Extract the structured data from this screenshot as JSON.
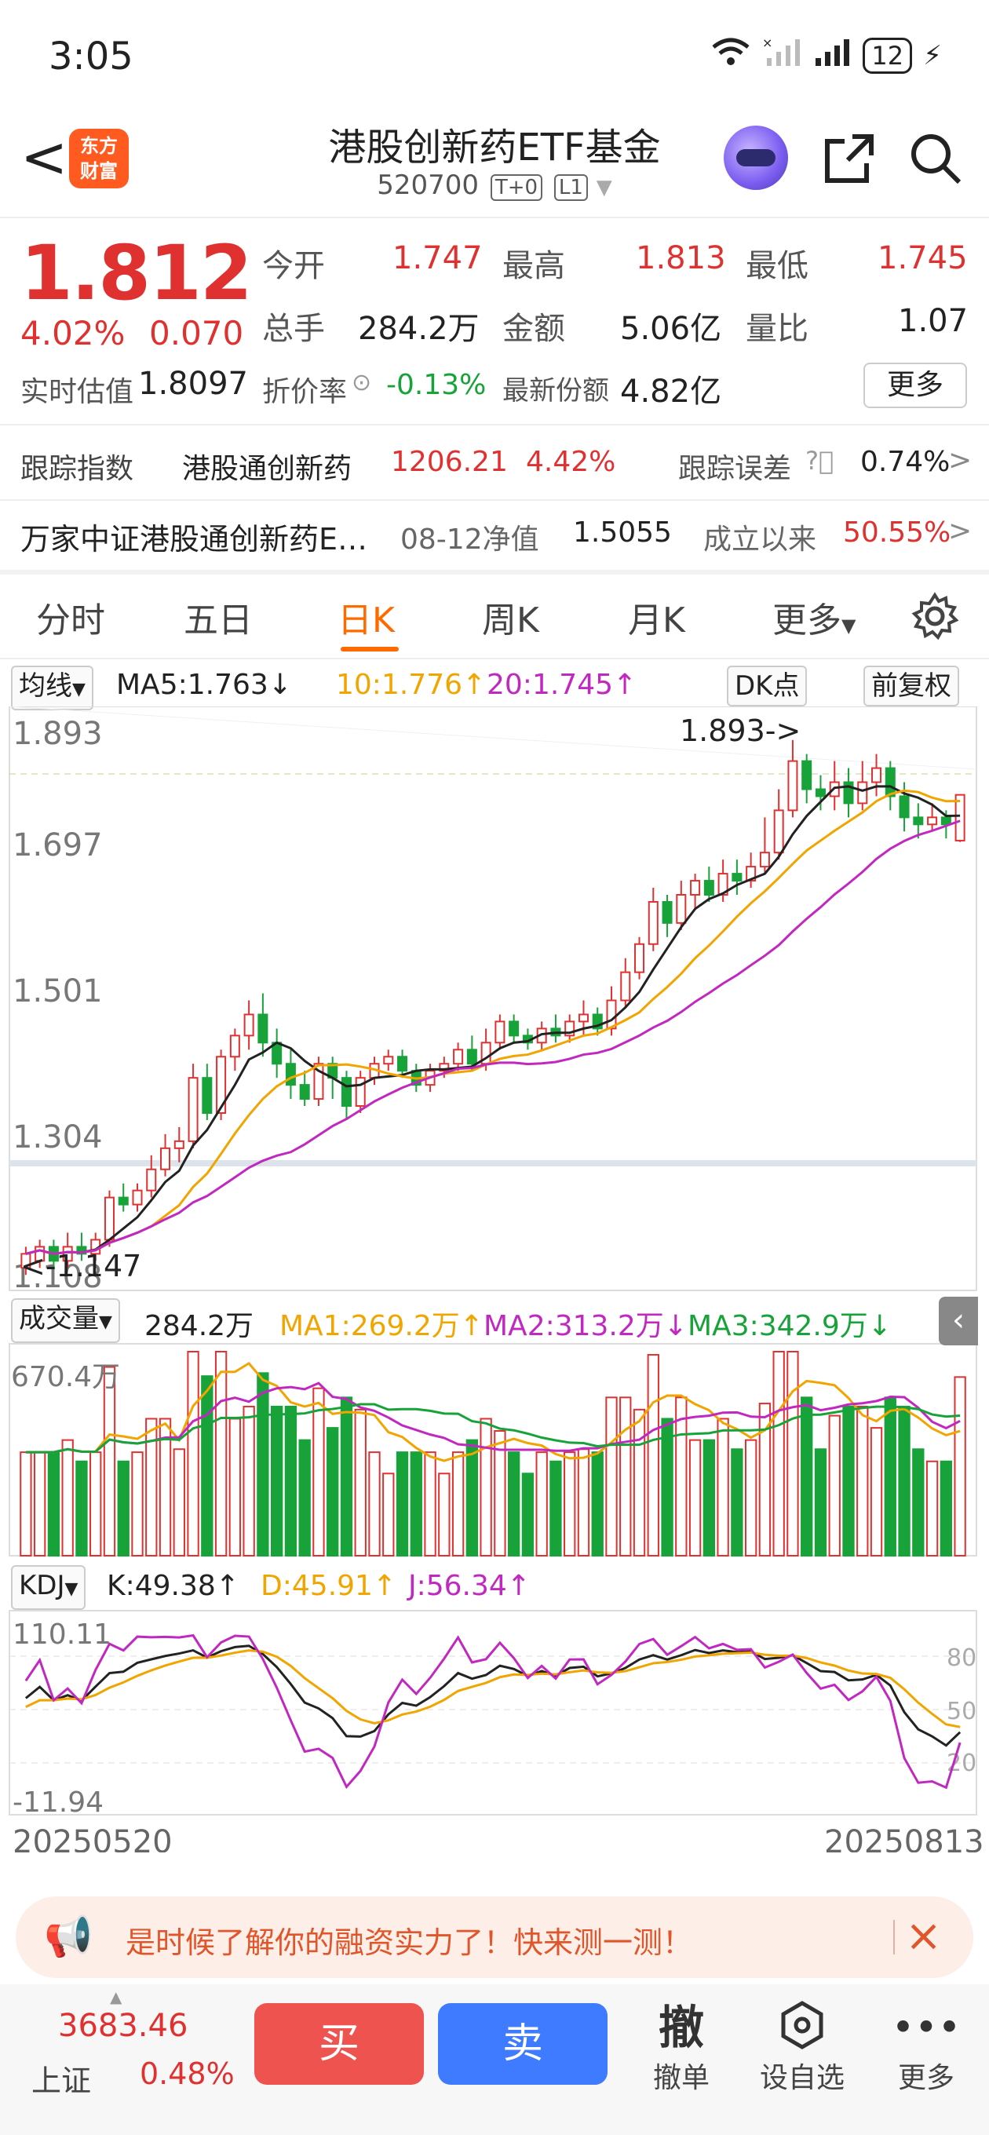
{
  "status": {
    "time": "3:05",
    "battery": "12"
  },
  "nav": {
    "back": "<",
    "logo_line1": "东方",
    "logo_line2": "财富",
    "title": "港股创新药ETF基金",
    "code": "520700",
    "tag1": "T+0",
    "tag2": "L1"
  },
  "quote": {
    "price": "1.812",
    "pct": "4.02%",
    "chg": "0.070",
    "open_label": "今开",
    "open": "1.747",
    "high_label": "最高",
    "high": "1.813",
    "low_label": "最低",
    "low": "1.745",
    "vol_label": "总手",
    "vol": "284.2万",
    "amt_label": "金额",
    "amt": "5.06亿",
    "ratio_label": "量比",
    "ratio": "1.07",
    "est_label": "实时估值",
    "est": "1.8097",
    "disc_label": "折价率",
    "disc": "-0.13%",
    "share_label": "最新份额",
    "share": "4.82亿",
    "more": "更多"
  },
  "tracking": {
    "label": "跟踪指数",
    "index": "港股通创新药",
    "value": "1206.21",
    "pct": "4.42%",
    "err_label": "跟踪误差",
    "err": "0.74%"
  },
  "fund": {
    "name": "万家中证港股通创新药E…",
    "nav_label": "08-12净值",
    "nav": "1.5055",
    "since_label": "成立以来",
    "since": "50.55%"
  },
  "tabs": [
    "分时",
    "五日",
    "日K",
    "周K",
    "月K",
    "更多"
  ],
  "active_tab": "日K",
  "kline_bar": {
    "ma_select": "均线",
    "ma5": "MA5:1.763↓",
    "ma10": "10:1.776↑",
    "ma20": "20:1.745↑",
    "dk": "DK点",
    "fq": "前复权"
  },
  "price_axis": [
    "1.893",
    "1.697",
    "1.501",
    "1.304",
    "1.108"
  ],
  "annotations": {
    "high_mark": "1.893->",
    "low_mark": "<-1.147"
  },
  "vol_bar": {
    "select": "成交量",
    "val": "284.2万",
    "ma1": "MA1:269.2万↑",
    "ma2": "MA2:313.2万↓",
    "ma3": "MA3:342.9万↓",
    "top": "670.4万"
  },
  "kdj_bar": {
    "select": "KDJ",
    "k": "K:49.38↑",
    "d": "D:45.91↑",
    "j": "J:56.34↑",
    "top": "110.11",
    "bottom": "-11.94",
    "l80": "80",
    "l50": "50",
    "l20": "20"
  },
  "dates": {
    "start": "20250520",
    "end": "20250813"
  },
  "banner": {
    "text": "是时候了解你的融资实力了！快来测一测！"
  },
  "bottom": {
    "idx_val": "3683.46",
    "idx_name": "上证",
    "idx_pct": "0.48%",
    "buy": "买",
    "sell": "卖",
    "cancel_icon": "撤",
    "cancel": "撤单",
    "watch": "设自选",
    "more": "更多"
  },
  "colors": {
    "up": "#e03131",
    "down": "#18a33a",
    "accent": "#ff6a00"
  },
  "chart_data": {
    "type": "candlestick",
    "title": "",
    "x_start": "20250520",
    "x_end": "20250813",
    "ylim": [
      1.108,
      1.893
    ],
    "candles": [
      [
        1.14,
        1.16,
        1.13,
        1.17
      ],
      [
        1.15,
        1.17,
        1.14,
        1.18
      ],
      [
        1.17,
        1.15,
        1.14,
        1.18
      ],
      [
        1.15,
        1.17,
        1.14,
        1.19
      ],
      [
        1.17,
        1.16,
        1.15,
        1.19
      ],
      [
        1.16,
        1.18,
        1.15,
        1.19
      ],
      [
        1.18,
        1.24,
        1.17,
        1.25
      ],
      [
        1.24,
        1.23,
        1.22,
        1.26
      ],
      [
        1.23,
        1.25,
        1.22,
        1.26
      ],
      [
        1.25,
        1.28,
        1.24,
        1.3
      ],
      [
        1.28,
        1.31,
        1.27,
        1.33
      ],
      [
        1.31,
        1.32,
        1.29,
        1.34
      ],
      [
        1.32,
        1.41,
        1.31,
        1.43
      ],
      [
        1.41,
        1.36,
        1.35,
        1.43
      ],
      [
        1.36,
        1.44,
        1.35,
        1.45
      ],
      [
        1.44,
        1.47,
        1.42,
        1.48
      ],
      [
        1.47,
        1.5,
        1.45,
        1.52
      ],
      [
        1.5,
        1.46,
        1.44,
        1.53
      ],
      [
        1.46,
        1.43,
        1.41,
        1.48
      ],
      [
        1.43,
        1.4,
        1.38,
        1.45
      ],
      [
        1.4,
        1.38,
        1.37,
        1.42
      ],
      [
        1.38,
        1.43,
        1.37,
        1.44
      ],
      [
        1.43,
        1.41,
        1.38,
        1.44
      ],
      [
        1.41,
        1.37,
        1.35,
        1.42
      ],
      [
        1.37,
        1.41,
        1.36,
        1.42
      ],
      [
        1.41,
        1.43,
        1.4,
        1.44
      ],
      [
        1.43,
        1.44,
        1.42,
        1.45
      ],
      [
        1.44,
        1.42,
        1.41,
        1.45
      ],
      [
        1.42,
        1.4,
        1.39,
        1.43
      ],
      [
        1.4,
        1.42,
        1.39,
        1.43
      ],
      [
        1.42,
        1.43,
        1.41,
        1.44
      ],
      [
        1.43,
        1.45,
        1.42,
        1.46
      ],
      [
        1.45,
        1.43,
        1.42,
        1.47
      ],
      [
        1.43,
        1.46,
        1.42,
        1.48
      ],
      [
        1.46,
        1.49,
        1.45,
        1.5
      ],
      [
        1.49,
        1.47,
        1.46,
        1.5
      ],
      [
        1.47,
        1.46,
        1.45,
        1.48
      ],
      [
        1.46,
        1.48,
        1.45,
        1.49
      ],
      [
        1.48,
        1.47,
        1.46,
        1.5
      ],
      [
        1.47,
        1.49,
        1.46,
        1.5
      ],
      [
        1.49,
        1.5,
        1.47,
        1.52
      ],
      [
        1.5,
        1.48,
        1.47,
        1.51
      ],
      [
        1.48,
        1.52,
        1.47,
        1.54
      ],
      [
        1.52,
        1.56,
        1.51,
        1.58
      ],
      [
        1.56,
        1.6,
        1.55,
        1.61
      ],
      [
        1.6,
        1.66,
        1.59,
        1.68
      ],
      [
        1.66,
        1.63,
        1.61,
        1.67
      ],
      [
        1.63,
        1.67,
        1.62,
        1.69
      ],
      [
        1.67,
        1.69,
        1.65,
        1.7
      ],
      [
        1.69,
        1.67,
        1.66,
        1.71
      ],
      [
        1.67,
        1.7,
        1.66,
        1.72
      ],
      [
        1.7,
        1.69,
        1.67,
        1.72
      ],
      [
        1.69,
        1.71,
        1.68,
        1.73
      ],
      [
        1.71,
        1.73,
        1.7,
        1.78
      ],
      [
        1.73,
        1.79,
        1.72,
        1.82
      ],
      [
        1.79,
        1.86,
        1.78,
        1.89
      ],
      [
        1.86,
        1.82,
        1.8,
        1.87
      ],
      [
        1.82,
        1.81,
        1.79,
        1.84
      ],
      [
        1.81,
        1.83,
        1.79,
        1.86
      ],
      [
        1.83,
        1.8,
        1.78,
        1.85
      ],
      [
        1.8,
        1.83,
        1.79,
        1.86
      ],
      [
        1.83,
        1.85,
        1.81,
        1.87
      ],
      [
        1.85,
        1.81,
        1.79,
        1.86
      ],
      [
        1.81,
        1.78,
        1.76,
        1.83
      ],
      [
        1.78,
        1.77,
        1.75,
        1.8
      ],
      [
        1.77,
        1.78,
        1.76,
        1.8
      ],
      [
        1.78,
        1.77,
        1.75,
        1.79
      ],
      [
        1.747,
        1.812,
        1.745,
        1.813
      ]
    ],
    "volume_ylim": [
      0,
      670.4
    ]
  }
}
